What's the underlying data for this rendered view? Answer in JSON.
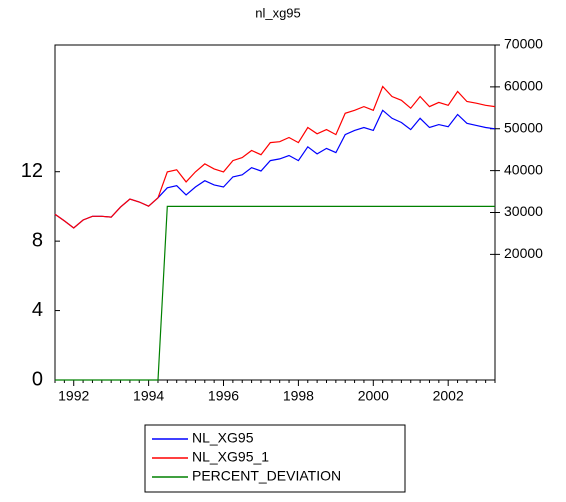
{
  "chart_data": {
    "type": "line",
    "title": "nl_xg95",
    "categories": [
      null,
      null,
      "1992",
      null,
      null,
      null,
      null,
      null,
      null,
      null,
      "1994",
      null,
      null,
      null,
      null,
      null,
      null,
      null,
      "1996",
      null,
      null,
      null,
      null,
      null,
      null,
      null,
      "1998",
      null,
      null,
      null,
      null,
      null,
      null,
      null,
      "2000",
      null,
      null,
      null,
      null,
      null,
      null,
      null,
      "2002",
      null,
      null,
      null,
      null,
      null
    ],
    "series": [
      {
        "name": "NL_XG95",
        "color": "#0000ff",
        "axis": "y2",
        "values": [
          29600,
          28000,
          26300,
          28200,
          29100,
          29100,
          28900,
          31300,
          33200,
          32500,
          31500,
          33500,
          35900,
          36400,
          34200,
          36100,
          37600,
          36600,
          36100,
          38500,
          39000,
          40700,
          39900,
          42400,
          42800,
          43600,
          42400,
          45700,
          44000,
          45300,
          44300,
          48600,
          49600,
          50300,
          49600,
          54400,
          52500,
          51500,
          49800,
          52500,
          50300,
          51000,
          50500,
          53400,
          51300,
          50800,
          50300,
          50000
        ]
      },
      {
        "name": "NL_XG95_1",
        "color": "#ff0000",
        "axis": "y2",
        "values": [
          29600,
          28000,
          26300,
          28200,
          29100,
          29100,
          28900,
          31300,
          33200,
          32500,
          31500,
          33500,
          39700,
          40200,
          37300,
          39700,
          41600,
          40400,
          39700,
          42400,
          43100,
          44800,
          43800,
          46700,
          46900,
          47900,
          46700,
          50300,
          48800,
          49800,
          48600,
          53700,
          54400,
          55300,
          54400,
          60100,
          57700,
          56800,
          54900,
          57700,
          55300,
          56300,
          55600,
          58900,
          56500,
          56100,
          55600,
          55300
        ]
      },
      {
        "name": "PERCENT_DEVIATION",
        "color": "#008000",
        "axis": "y",
        "values": [
          0,
          0,
          0,
          0,
          0,
          0,
          0,
          0,
          0,
          0,
          0,
          0,
          10,
          10,
          10,
          10,
          10,
          10,
          10,
          10,
          10,
          10,
          10,
          10,
          10,
          10,
          10,
          10,
          10,
          10,
          10,
          10,
          10,
          10,
          10,
          10,
          10,
          10,
          10,
          10,
          10,
          10,
          10,
          10,
          10,
          10,
          10,
          10
        ]
      }
    ],
    "ylim": [
      0,
      19.3
    ],
    "yticks": [
      0,
      4,
      8,
      12
    ],
    "y2lim": [
      -10000,
      70000
    ],
    "y2ticks": [
      20000,
      30000,
      40000,
      50000,
      60000,
      70000
    ]
  }
}
